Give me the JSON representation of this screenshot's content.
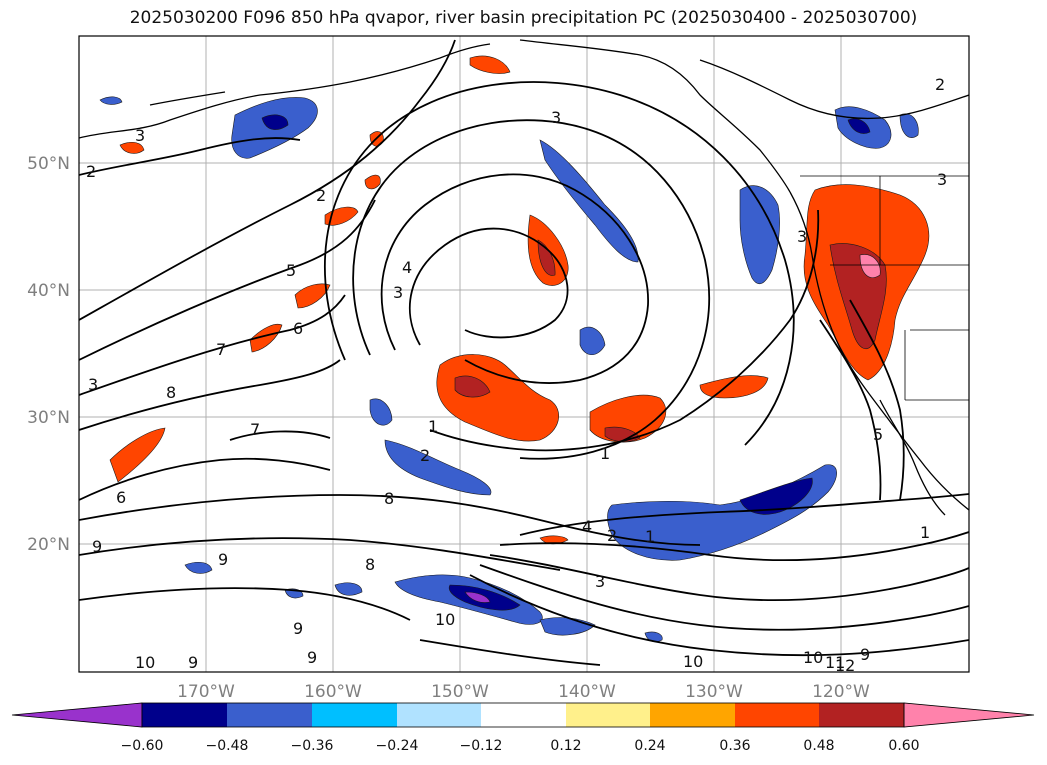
{
  "title": "2025030200 F096 850 hPa qvapor, river basin precipitation PC (2025030400 - 2025030700)",
  "lat_labels": [
    "50°N",
    "40°N",
    "30°N",
    "20°N"
  ],
  "lon_labels": [
    "170°W",
    "160°W",
    "150°W",
    "140°W",
    "130°W",
    "120°W"
  ],
  "colorbar": {
    "colors": [
      "#9932cc",
      "#00008b",
      "#3a5fcd",
      "#00bfff",
      "#b0e2ff",
      "#ffffff",
      "#fff08b",
      "#ffa500",
      "#ff4500",
      "#b22222",
      "#ff82ab"
    ],
    "labels": [
      "−0.60",
      "−0.48",
      "−0.36",
      "−0.24",
      "−0.12",
      "0.12",
      "0.24",
      "0.36",
      "0.48",
      "0.60"
    ]
  },
  "contour_labels": [
    "3",
    "2",
    "2",
    "3",
    "5",
    "4",
    "3",
    "6",
    "7",
    "8",
    "3",
    "7",
    "6",
    "1",
    "1",
    "2",
    "8",
    "9",
    "9",
    "8",
    "4",
    "2",
    "1",
    "3",
    "10",
    "9",
    "9",
    "10",
    "10",
    "10",
    "11",
    "12",
    "9",
    "5",
    "1",
    "2",
    "3",
    "3",
    "9"
  ]
}
